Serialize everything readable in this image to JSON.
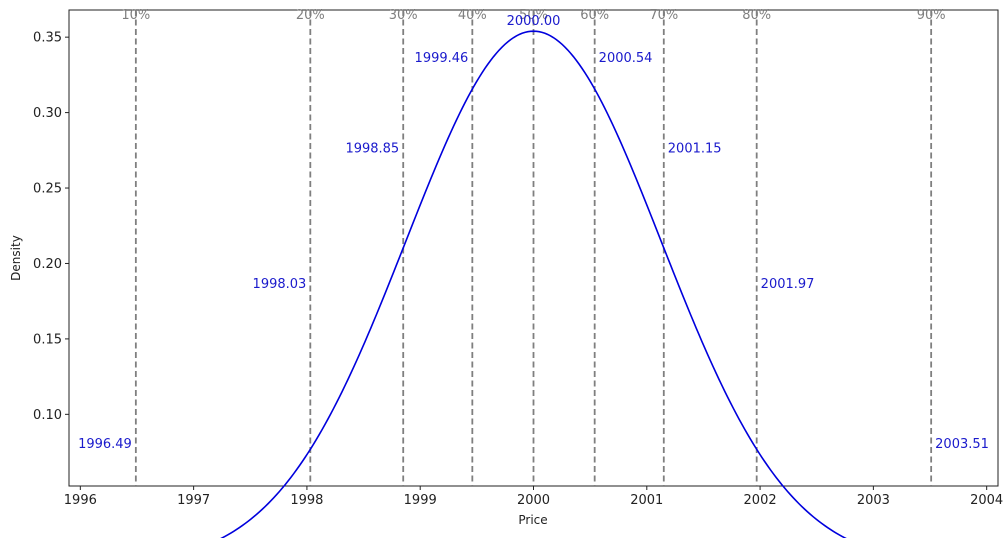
{
  "chart_data": {
    "type": "line",
    "title": "",
    "xlabel": "Price",
    "ylabel": "Density",
    "xlim": [
      1995.9,
      2004.1
    ],
    "ylim": [
      0.0525,
      0.368
    ],
    "x_ticks": [
      1996,
      1997,
      1998,
      1999,
      2000,
      2001,
      2002,
      2003,
      2004
    ],
    "x_tick_labels": [
      "1996",
      "1997",
      "1998",
      "1999",
      "2000",
      "2001",
      "2002",
      "2003",
      "2004"
    ],
    "y_ticks": [
      0.1,
      0.15,
      0.2,
      0.25,
      0.3,
      0.35
    ],
    "y_tick_labels": [
      "0.10",
      "0.15",
      "0.20",
      "0.25",
      "0.30",
      "0.35"
    ],
    "curve": {
      "distribution": "normal",
      "mean": 2000,
      "std": 1.127,
      "x_min": 1996.22,
      "x_max": 2003.78,
      "color": "#0000dd"
    },
    "quantiles": [
      {
        "percent_label": "10%",
        "value": 1996.49,
        "value_label": "1996.49",
        "density": 0.0756,
        "label_side": "left"
      },
      {
        "percent_label": "20%",
        "value": 1998.03,
        "value_label": "1998.03",
        "density": 0.1818,
        "label_side": "left"
      },
      {
        "percent_label": "30%",
        "value": 1998.85,
        "value_label": "1998.85",
        "density": 0.2717,
        "label_side": "left"
      },
      {
        "percent_label": "40%",
        "value": 1999.46,
        "value_label": "1999.46",
        "density": 0.3314,
        "label_side": "left"
      },
      {
        "percent_label": "50%",
        "value": 2000.0,
        "value_label": "2000.00",
        "density": 0.354,
        "label_side": "center"
      },
      {
        "percent_label": "60%",
        "value": 2000.54,
        "value_label": "2000.54",
        "density": 0.3314,
        "label_side": "right"
      },
      {
        "percent_label": "70%",
        "value": 2001.15,
        "value_label": "2001.15",
        "density": 0.2717,
        "label_side": "right"
      },
      {
        "percent_label": "80%",
        "value": 2001.97,
        "value_label": "2001.97",
        "density": 0.1818,
        "label_side": "right"
      },
      {
        "percent_label": "90%",
        "value": 2003.51,
        "value_label": "2003.51",
        "density": 0.0756,
        "label_side": "right"
      }
    ],
    "quantile_line_color": "#7f7f7f",
    "value_label_color": "#1a1acc",
    "grid": false,
    "legend": "none"
  }
}
